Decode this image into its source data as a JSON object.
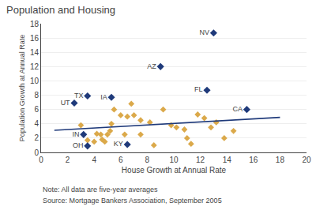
{
  "chart_data": {
    "type": "scatter",
    "title": "Population and Housing",
    "xlabel": "House Growth at Annual Rate",
    "ylabel": "Population Growth at Annual Rate",
    "xlim": [
      0,
      20
    ],
    "ylim": [
      0,
      18
    ],
    "xticks": [
      0,
      2,
      4,
      6,
      8,
      10,
      12,
      14,
      16,
      18,
      20
    ],
    "yticks": [
      0,
      2,
      4,
      6,
      8,
      10,
      12,
      14,
      16,
      18
    ],
    "grid": "y",
    "annotations": [
      "Note: All data are five-year averages",
      "Source: Mortgage Bankers Association, September 2005"
    ],
    "series": [
      {
        "type": "scatter",
        "marker": "diamond",
        "color": "#dba94a",
        "x": [
          3.5,
          4.0,
          4.2,
          4.5,
          4.6,
          4.8,
          5.0,
          5.2,
          5.5,
          5.3,
          6.0,
          6.3,
          6.5,
          6.8,
          7.0,
          7.5,
          7.5,
          8.2,
          8.5,
          9.2,
          9.8,
          10.2,
          10.8,
          11.0,
          11.3,
          11.8,
          12.3,
          12.8,
          13.2,
          13.8,
          14.5,
          3.0
        ],
        "values": [
          1.7,
          1.5,
          2.6,
          2.5,
          1.8,
          1.5,
          2.5,
          3.0,
          6.0,
          4.0,
          5.2,
          2.5,
          5.0,
          6.8,
          5.2,
          4.5,
          2.5,
          4.2,
          1.0,
          6.0,
          3.8,
          3.5,
          3.2,
          2.0,
          1.2,
          5.3,
          4.8,
          3.5,
          4.2,
          2.0,
          3.0,
          3.8
        ]
      },
      {
        "type": "scatter",
        "marker": "diamond",
        "color": "#1f3a7a",
        "x": [
          13.0,
          9.0,
          3.5,
          5.3,
          2.5,
          12.5,
          15.5,
          3.2,
          3.5,
          6.5
        ],
        "values": [
          16.7,
          12.0,
          7.9,
          7.7,
          6.9,
          8.7,
          6.0,
          2.5,
          0.9,
          1.1
        ],
        "labels": [
          "NV",
          "AZ",
          "TX",
          "IA",
          "UT",
          "FL",
          "CA",
          "IN",
          "OH",
          "KY"
        ]
      },
      {
        "type": "line",
        "line_style": "solid",
        "color": "#1f3a7a",
        "x": [
          1.0,
          18.0
        ],
        "values": [
          3.1,
          4.9
        ]
      }
    ]
  }
}
